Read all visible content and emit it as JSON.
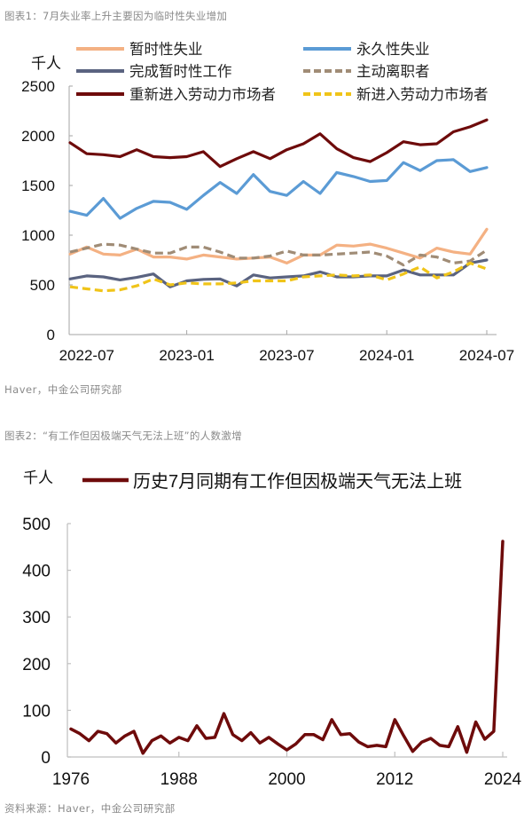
{
  "figure1": {
    "caption": "图表1：7月失业率上升主要因为临时性失业增加",
    "source": "Haver，中金公司研究部",
    "unit_label": "千人"
  },
  "figure2": {
    "caption": "图表2：“有工作但因极端天气无法上班”的人数激增",
    "source": "资料来源：Haver，中金公司研究部",
    "unit_label": "千人"
  },
  "chart_data": [
    {
      "type": "line",
      "title": "7月失业率上升主要因为临时性失业增加",
      "xlabel": "",
      "ylabel": "千人",
      "ylim": [
        0,
        2500
      ],
      "yticks": [
        0,
        500,
        1000,
        1500,
        2000,
        2500
      ],
      "xtick_labels": [
        "2022-07",
        "2023-01",
        "2023-07",
        "2024-01",
        "2024-07"
      ],
      "grid": false,
      "legend_position": "top",
      "x": [
        "2022-06",
        "2022-07",
        "2022-08",
        "2022-09",
        "2022-10",
        "2022-11",
        "2022-12",
        "2023-01",
        "2023-02",
        "2023-03",
        "2023-04",
        "2023-05",
        "2023-06",
        "2023-07",
        "2023-08",
        "2023-09",
        "2023-10",
        "2023-11",
        "2023-12",
        "2024-01",
        "2024-02",
        "2024-03",
        "2024-04",
        "2024-05",
        "2024-06",
        "2024-07"
      ],
      "series": [
        {
          "name": "暂时性失业",
          "color": "#F4B183",
          "dash": false,
          "values": [
            810,
            880,
            810,
            800,
            860,
            780,
            780,
            760,
            800,
            780,
            760,
            770,
            780,
            720,
            800,
            800,
            900,
            890,
            910,
            870,
            820,
            770,
            870,
            830,
            810,
            1060
          ]
        },
        {
          "name": "永久性失业",
          "color": "#5B9BD5",
          "dash": false,
          "values": [
            1240,
            1200,
            1370,
            1170,
            1270,
            1340,
            1330,
            1260,
            1400,
            1530,
            1420,
            1610,
            1440,
            1400,
            1540,
            1420,
            1630,
            1590,
            1540,
            1550,
            1730,
            1650,
            1750,
            1760,
            1640,
            1680
          ]
        },
        {
          "name": "完成暂时性工作",
          "color": "#5A6380",
          "dash": false,
          "values": [
            560,
            590,
            580,
            550,
            575,
            610,
            480,
            540,
            555,
            560,
            490,
            600,
            570,
            580,
            590,
            630,
            580,
            580,
            590,
            590,
            650,
            600,
            600,
            600,
            720,
            750
          ]
        },
        {
          "name": "主动离职者",
          "color": "#A08C76",
          "dash": true,
          "values": [
            830,
            870,
            910,
            900,
            860,
            820,
            820,
            880,
            880,
            830,
            770,
            770,
            790,
            840,
            800,
            800,
            810,
            820,
            830,
            790,
            700,
            800,
            780,
            720,
            740,
            850
          ]
        },
        {
          "name": "重新进入劳动力市场者",
          "color": "#6E0B0B",
          "dash": false,
          "values": [
            1930,
            1820,
            1810,
            1790,
            1860,
            1790,
            1780,
            1790,
            1840,
            1690,
            1770,
            1840,
            1770,
            1860,
            1920,
            2020,
            1870,
            1780,
            1740,
            1830,
            1940,
            1910,
            1920,
            2040,
            2090,
            2160
          ]
        },
        {
          "name": "新进入劳动力市场者",
          "color": "#F0C419",
          "dash": true,
          "values": [
            480,
            460,
            440,
            450,
            490,
            560,
            500,
            520,
            510,
            510,
            520,
            540,
            540,
            540,
            580,
            590,
            600,
            590,
            600,
            550,
            610,
            680,
            570,
            630,
            720,
            660
          ]
        }
      ]
    },
    {
      "type": "line",
      "title": "“有工作但因极端天气无法上班”的人数激增",
      "xlabel": "",
      "ylabel": "千人",
      "ylim": [
        0,
        500
      ],
      "yticks": [
        0,
        100,
        200,
        300,
        400,
        500
      ],
      "xtick_labels": [
        "1976",
        "1988",
        "2000",
        "2012",
        "2024"
      ],
      "grid": false,
      "legend_position": "top",
      "x": [
        1976,
        1977,
        1978,
        1979,
        1980,
        1981,
        1982,
        1983,
        1984,
        1985,
        1986,
        1987,
        1988,
        1989,
        1990,
        1991,
        1992,
        1993,
        1994,
        1995,
        1996,
        1997,
        1998,
        1999,
        2000,
        2001,
        2002,
        2003,
        2004,
        2005,
        2006,
        2007,
        2008,
        2009,
        2010,
        2011,
        2012,
        2013,
        2014,
        2015,
        2016,
        2017,
        2018,
        2019,
        2020,
        2021,
        2022,
        2023,
        2024
      ],
      "series": [
        {
          "name": "历史7月同期有工作但因极端天气无法上班",
          "color": "#6E0B0B",
          "dash": false,
          "values": [
            60,
            50,
            35,
            55,
            50,
            30,
            45,
            55,
            8,
            35,
            45,
            30,
            42,
            35,
            67,
            40,
            42,
            93,
            48,
            35,
            52,
            30,
            42,
            28,
            15,
            28,
            48,
            48,
            37,
            80,
            48,
            50,
            32,
            22,
            25,
            22,
            80,
            45,
            12,
            32,
            40,
            25,
            22,
            65,
            10,
            75,
            38,
            55,
            462
          ]
        }
      ]
    }
  ]
}
